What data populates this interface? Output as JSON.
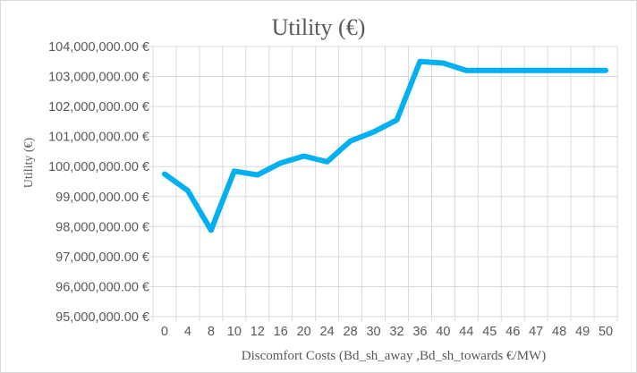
{
  "chart_data": {
    "type": "line",
    "title": "Utility (€)",
    "xlabel": "Discomfort Costs (Bd_sh_away ,Bd_sh_towards €/MW)",
    "ylabel": "Utility (€)",
    "x": [
      "0",
      "4",
      "8",
      "10",
      "12",
      "16",
      "20",
      "24",
      "28",
      "30",
      "32",
      "36",
      "40",
      "44",
      "45",
      "46",
      "47",
      "48",
      "49",
      "50"
    ],
    "series": [
      {
        "values": [
          99750000,
          99200000,
          97880000,
          99850000,
          99720000,
          100120000,
          100350000,
          100160000,
          100850000,
          101150000,
          101550000,
          103500000,
          103450000,
          103200000,
          103200000,
          103200000,
          103200000,
          103200000,
          103200000,
          103200000
        ],
        "color": "#00b0f0"
      }
    ],
    "y_ticks": [
      "95,000,000.00 €",
      "96,000,000.00 €",
      "97,000,000.00 €",
      "98,000,000.00 €",
      "99,000,000.00 €",
      "100,000,000.00 €",
      "101,000,000.00 €",
      "102,000,000.00 €",
      "103,000,000.00 €",
      "104,000,000.00 €"
    ],
    "ylim": [
      95000000,
      104000000
    ],
    "y_step": 1000000,
    "grid": true,
    "legend": "none",
    "gridline_color": "#d9d9d9",
    "text_color": "#595959"
  }
}
